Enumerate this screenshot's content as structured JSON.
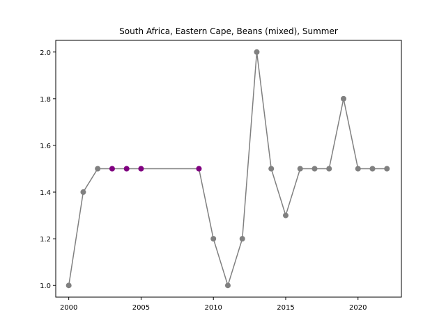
{
  "chart_data": {
    "type": "line",
    "title": "South Africa, Eastern Cape, Beans (mixed), Summer",
    "xlabel": "",
    "ylabel": "",
    "xlim": [
      1999.1,
      2023.0
    ],
    "ylim": [
      0.95,
      2.05
    ],
    "xticks": [
      2000,
      2005,
      2010,
      2015,
      2020
    ],
    "yticks": [
      1.0,
      1.2,
      1.4,
      1.6,
      1.8,
      2.0
    ],
    "grid": false,
    "line_color": "#808080",
    "default_marker_color": "#808080",
    "highlight_marker_color": "#800080",
    "series": [
      {
        "x": [
          2000,
          2001,
          2002,
          2003,
          2004,
          2005,
          2009,
          2010,
          2011,
          2012,
          2013,
          2014,
          2015,
          2016,
          2017,
          2018,
          2019,
          2020,
          2021,
          2022
        ],
        "y": [
          1.0,
          1.4,
          1.5,
          1.5,
          1.5,
          1.5,
          1.5,
          1.2,
          1.0,
          1.2,
          2.0,
          1.5,
          1.3,
          1.5,
          1.5,
          1.5,
          1.8,
          1.5,
          1.5,
          1.5
        ],
        "highlight": [
          false,
          false,
          false,
          true,
          true,
          true,
          true,
          false,
          false,
          false,
          false,
          false,
          false,
          false,
          false,
          false,
          false,
          false,
          false,
          false
        ]
      }
    ]
  }
}
